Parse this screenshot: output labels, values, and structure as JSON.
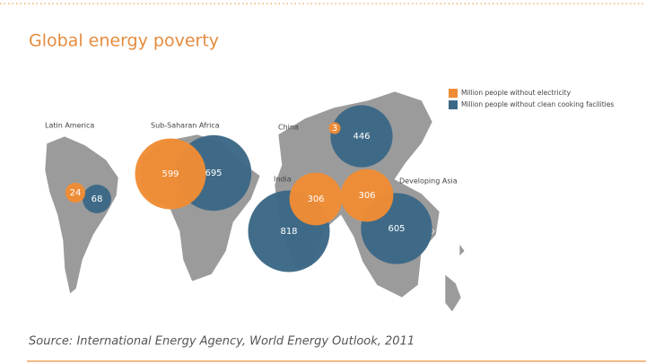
{
  "chart_data": {
    "type": "bubble",
    "title": "Global energy poverty",
    "categories": [
      "Latin America",
      "Sub-Saharan Africa",
      "China",
      "India",
      "Developing Asia"
    ],
    "series": [
      {
        "name": "Million people without electricity",
        "color": "#ef8c35",
        "values": [
          24,
          599,
          3,
          306,
          306
        ]
      },
      {
        "name": "Million people without clean cooking facilities",
        "color": "#3c6886",
        "values": [
          68,
          695,
          446,
          818,
          605
        ]
      }
    ],
    "source": "Source: International Energy Agency, World Energy Outlook, 2011"
  }
}
